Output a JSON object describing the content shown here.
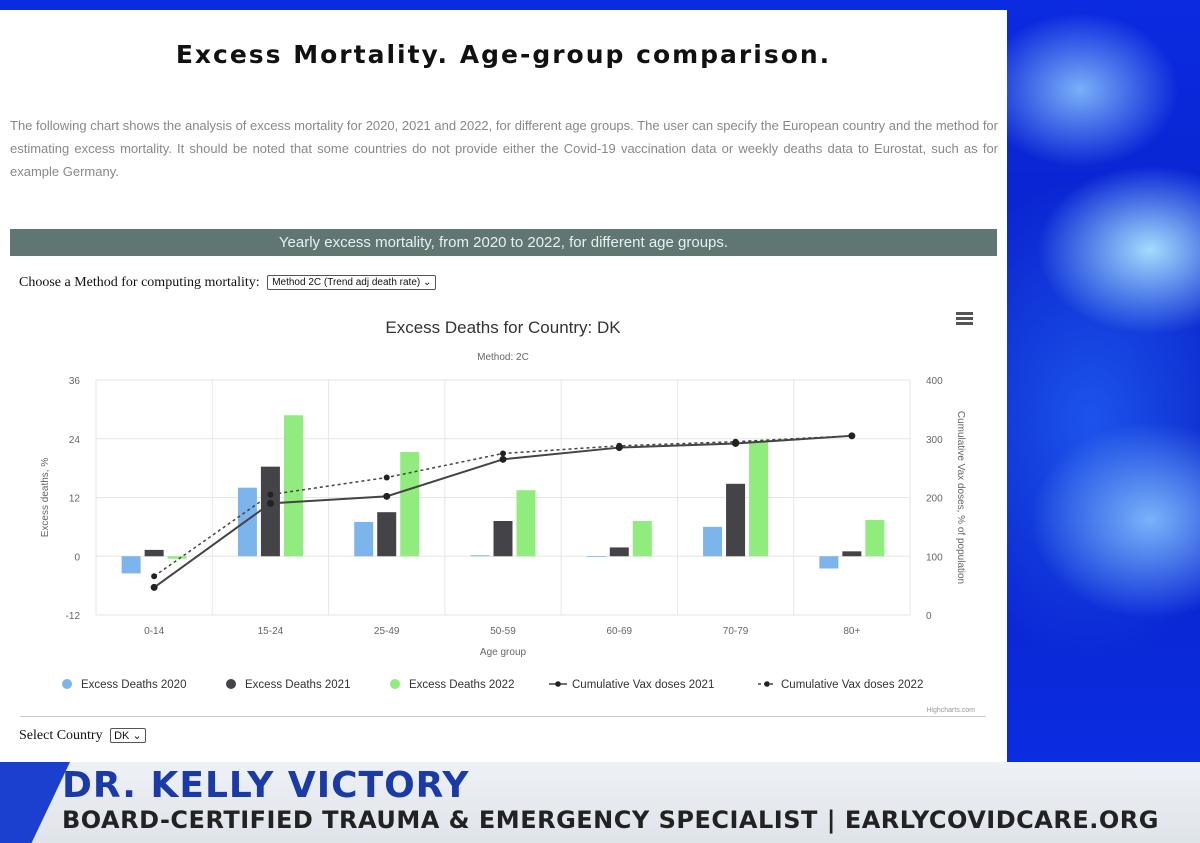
{
  "page": {
    "title": "Excess Mortality. Age-group comparison.",
    "intro": "The following chart shows the analysis of excess mortality for 2020, 2021 and 2022, for different age groups. The user can specify the European country and the method for estimating excess mortality. It should be noted that some countries do not provide either the Covid-19 vaccination data or weekly deaths data to Eurostat, such as for example Germany.",
    "banner": "Yearly excess mortality, from 2020 to 2022, for different age groups.",
    "method_label": "Choose a Method for computing mortality:",
    "method_value": "Method 2C (Trend adj death rate)",
    "country_label": "Select Country",
    "country_value": "DK",
    "credits": "Highcharts.com"
  },
  "lower_third": {
    "name": "DR. KELLY VICTORY",
    "subtitle": "BOARD-CERTIFIED TRAUMA & EMERGENCY SPECIALIST | EARLYCOVIDCARE.ORG"
  },
  "colors": {
    "s2020": "#7cb5ec",
    "s2021": "#434348",
    "s2022": "#90ed7d",
    "vax": "#434348",
    "banner": "#5f7672"
  },
  "chart_data": {
    "type": "bar",
    "title": "Excess Deaths for Country: DK",
    "subtitle": "Method: 2C",
    "xlabel": "Age group",
    "ylabel": "Excess deaths, %",
    "y2label": "Cumulative Vax doses, % of population",
    "categories": [
      "0-14",
      "15-24",
      "25-49",
      "50-59",
      "60-69",
      "70-79",
      "80+"
    ],
    "ylim": [
      -12,
      36
    ],
    "yticks": [
      "-12",
      "0",
      "12",
      "24",
      "36"
    ],
    "y2lim": [
      0,
      400
    ],
    "y2ticks": [
      "0",
      "100",
      "200",
      "300",
      "400"
    ],
    "grid": true,
    "legend_position": "bottom",
    "series": [
      {
        "name": "Excess Deaths 2020",
        "type": "column",
        "axis": "left",
        "values": [
          -3.5,
          14,
          7,
          0.2,
          0,
          6,
          -2.5
        ]
      },
      {
        "name": "Excess Deaths 2021",
        "type": "column",
        "axis": "left",
        "values": [
          1.3,
          18.3,
          9,
          7.2,
          1.8,
          14.8,
          1
        ]
      },
      {
        "name": "Excess Deaths 2022",
        "type": "column",
        "axis": "left",
        "values": [
          -0.5,
          28.8,
          21.3,
          13.5,
          7.2,
          23.5,
          7.4
        ]
      },
      {
        "name": "Cumulative Vax doses 2021",
        "type": "line",
        "axis": "right",
        "values": [
          47,
          190,
          202,
          265,
          285,
          292,
          305
        ]
      },
      {
        "name": "Cumulative Vax doses 2022",
        "type": "line",
        "dashed": true,
        "axis": "right",
        "values": [
          66,
          205,
          234,
          275,
          288,
          295,
          305
        ]
      }
    ]
  }
}
